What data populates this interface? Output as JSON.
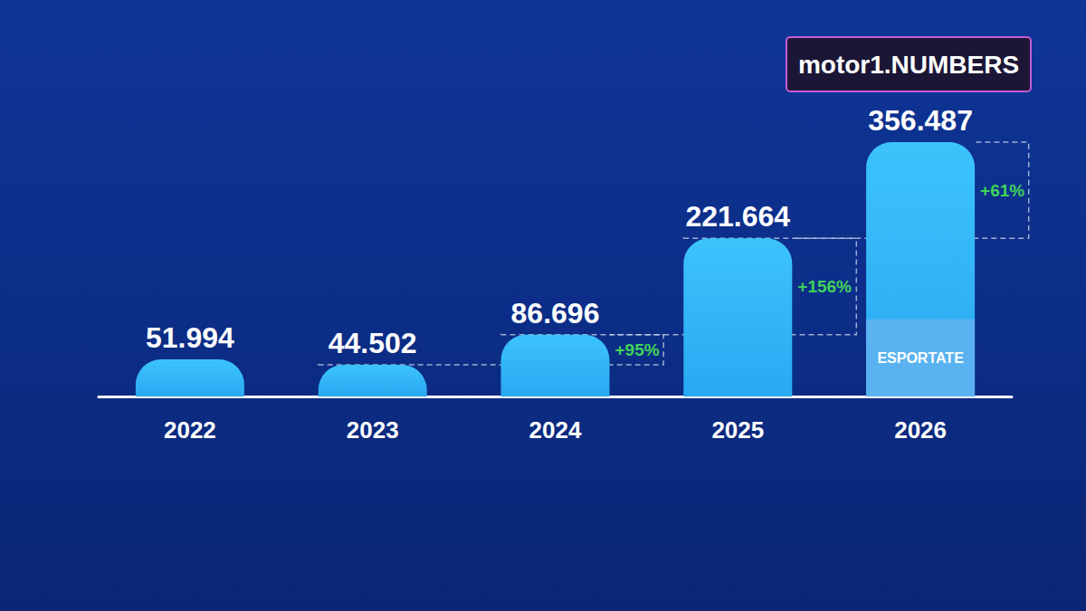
{
  "chart_data": {
    "type": "bar",
    "categories": [
      "2022",
      "2023",
      "2024",
      "2025",
      "2026"
    ],
    "values": [
      51994,
      44502,
      86696,
      221664,
      356487
    ],
    "value_labels": [
      "51.994",
      "44.502",
      "86.696",
      "221.664",
      "356.487"
    ],
    "color": "#2aa8f2",
    "data_labels": true,
    "tick_labels": "x",
    "grid": false,
    "ylim": [
      0,
      356487
    ],
    "exported": {
      "name": "ESPORTATE",
      "values": [
        null,
        null,
        null,
        null,
        108000
      ],
      "color": "#5ab3f0"
    },
    "annotations": [
      {
        "from": "2023",
        "to": "2024",
        "text": "+95%"
      },
      {
        "from": "2024",
        "to": "2025",
        "text": "+156%"
      },
      {
        "from": "2025",
        "to": "2026",
        "text": "+61%"
      }
    ]
  },
  "logo": "motor1.NUMBERS"
}
